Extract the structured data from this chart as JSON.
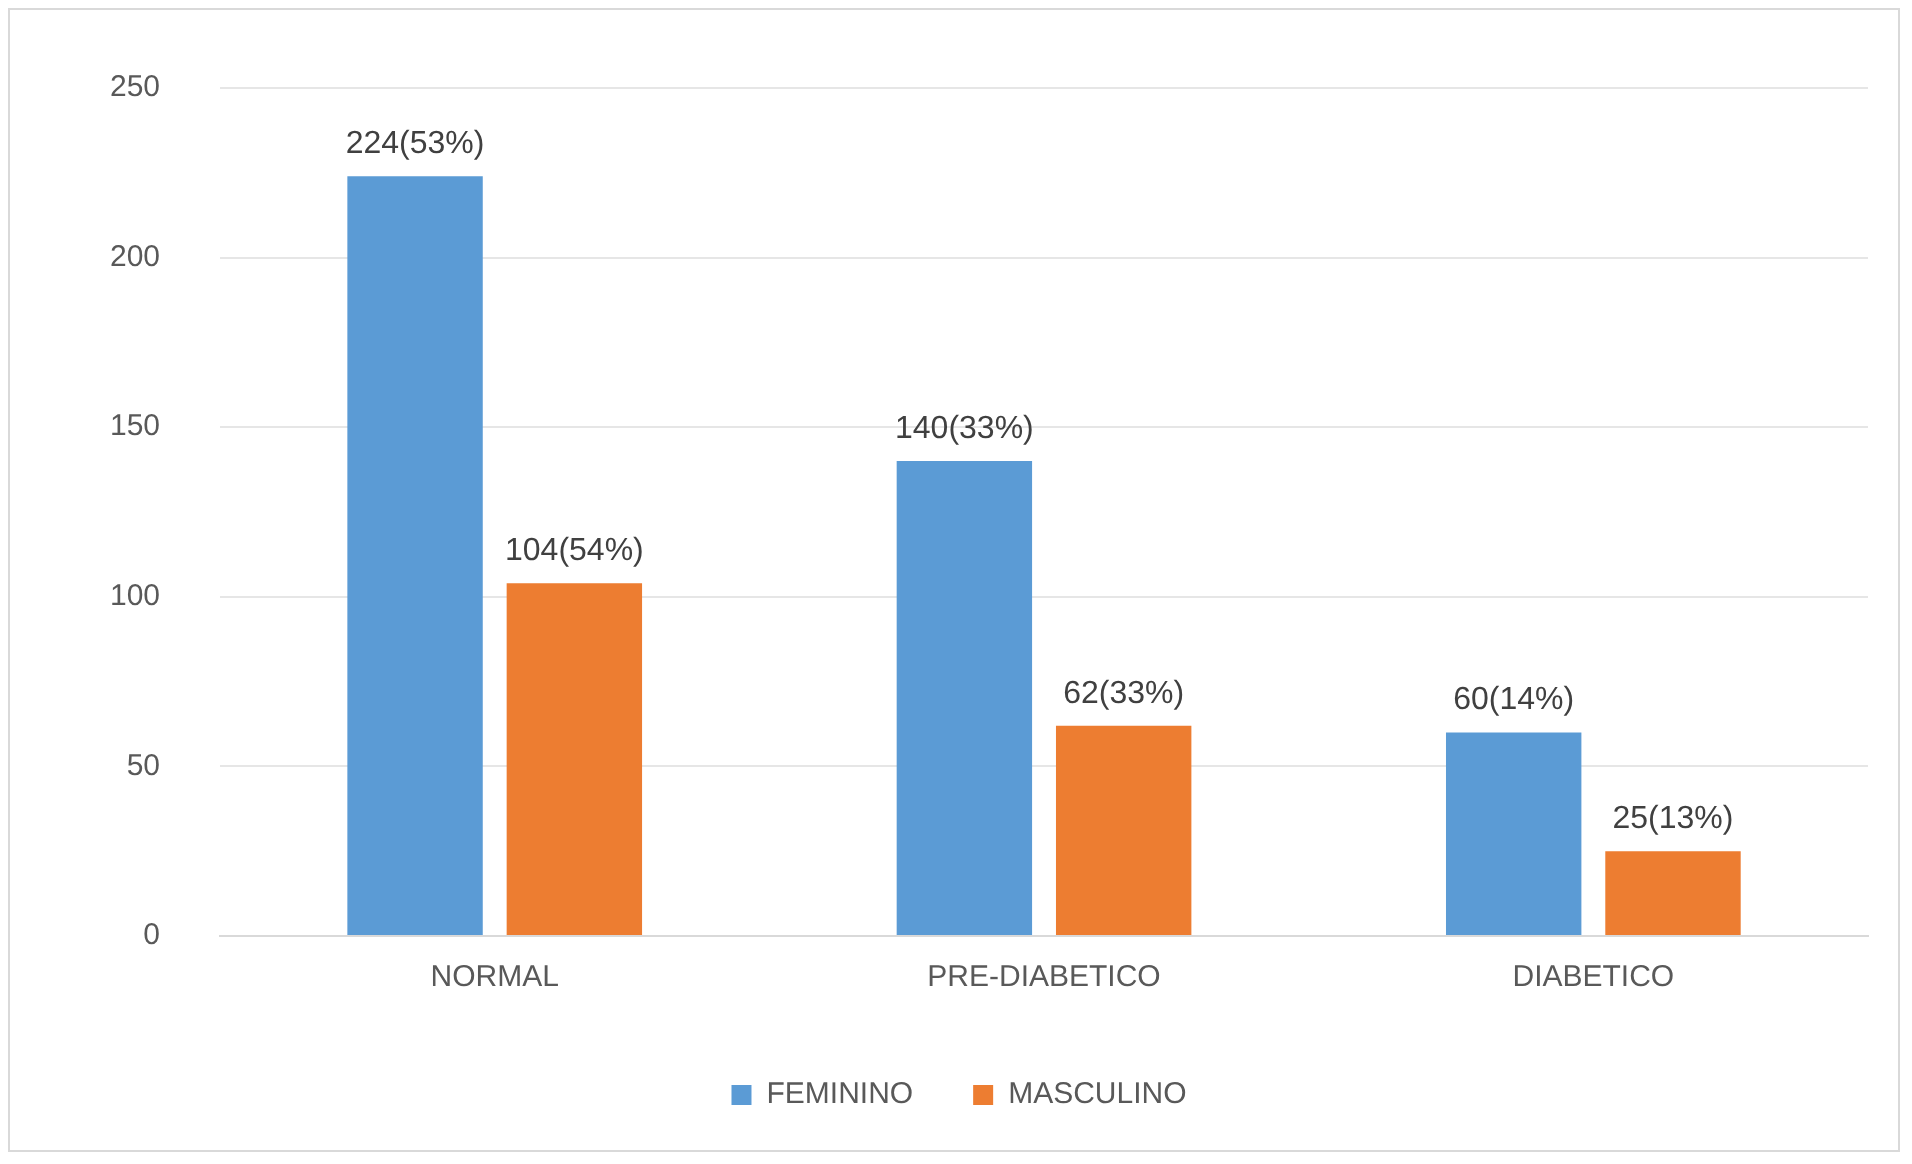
{
  "chart_data": {
    "type": "bar",
    "categories": [
      "NORMAL",
      "PRE-DIABETICO",
      "DIABETICO"
    ],
    "series": [
      {
        "name": "FEMININO",
        "color": "#5b9bd5",
        "values": [
          224,
          140,
          60
        ],
        "value_labels": [
          "224(53%)",
          "140(33%)",
          "60(14%)"
        ]
      },
      {
        "name": "MASCULINO",
        "color": "#ed7d31",
        "values": [
          104,
          62,
          25
        ],
        "value_labels": [
          "104(54%)",
          "62(33%)",
          "25(13%)"
        ]
      }
    ],
    "ylim": [
      0,
      250
    ],
    "yticks": [
      0,
      50,
      100,
      150,
      200,
      250
    ],
    "grid": "y",
    "legend": "bottom"
  }
}
